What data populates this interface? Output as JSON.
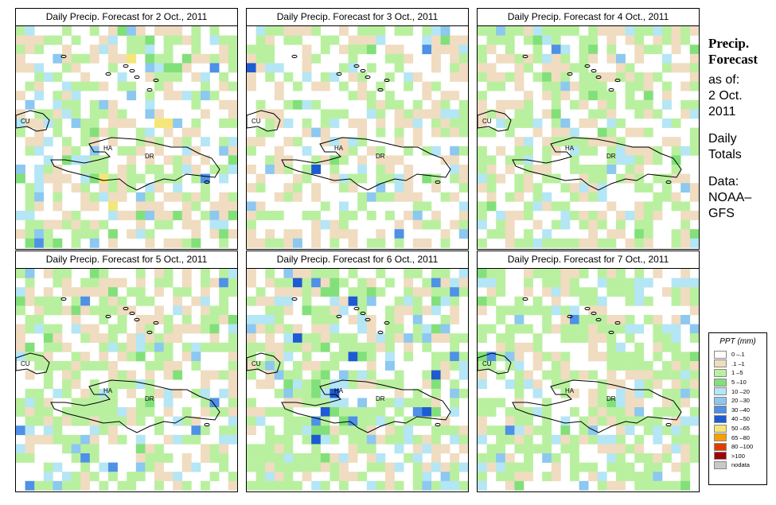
{
  "panels": [
    {
      "title": "Daily Precip. Forecast for  2 Oct., 2011",
      "seed": 11,
      "variant": "a",
      "labels": {
        "cu": "CU",
        "ha": "HA",
        "dr": "DR"
      }
    },
    {
      "title": "Daily Precip. Forecast for  3 Oct., 2011",
      "seed": 23,
      "variant": "b",
      "labels": {
        "cu": "CU",
        "ha": "HA",
        "dr": "DR"
      }
    },
    {
      "title": "Daily Precip. Forecast for  4 Oct., 2011",
      "seed": 37,
      "variant": "c",
      "labels": {
        "cu": "CU",
        "ha": "HA",
        "dr": "DR"
      }
    },
    {
      "title": "Daily Precip. Forecast for  5 Oct., 2011",
      "seed": 41,
      "variant": "d",
      "labels": {
        "cu": "CU",
        "ha": "HA",
        "dr": "DR"
      }
    },
    {
      "title": "Daily Precip. Forecast for  6 Oct., 2011",
      "seed": 53,
      "variant": "e",
      "labels": {
        "cu": "CU",
        "ha": "HA",
        "dr": "DR"
      }
    },
    {
      "title": "Daily Precip. Forecast for  7 Oct., 2011",
      "seed": 67,
      "variant": "f",
      "labels": {
        "cu": "CU",
        "ha": "HA",
        "dr": "DR"
      }
    }
  ],
  "side": {
    "title1": "Precip.",
    "title2": "Forecast",
    "asof": "as of:",
    "date1": "2 Oct.",
    "date2": "2011",
    "daily": "Daily",
    "totals": "Totals",
    "data": "Data:",
    "source1": "NOAA–",
    "source2": "GFS"
  },
  "legend": {
    "title": "PPT (mm)",
    "items": [
      {
        "label": "0 –.1",
        "color": "#ffffff"
      },
      {
        "label": ".1 –1",
        "color": "#f0dcc0"
      },
      {
        "label": "1 –5",
        "color": "#b9f0a0"
      },
      {
        "label": "5 –10",
        "color": "#82e07a"
      },
      {
        "label": "10 –20",
        "color": "#b4e6f5"
      },
      {
        "label": "20 –30",
        "color": "#8cc8f0"
      },
      {
        "label": "30 –40",
        "color": "#4e91e6"
      },
      {
        "label": "40 –50",
        "color": "#1e5ad2"
      },
      {
        "label": "50 –65",
        "color": "#f5e678"
      },
      {
        "label": "65 –80",
        "color": "#f5a000"
      },
      {
        "label": "80 –100",
        "color": "#e13c00"
      },
      {
        "label": ">100",
        "color": "#a00000"
      },
      {
        "label": "nodata",
        "color": "#c8c8c8"
      }
    ]
  }
}
